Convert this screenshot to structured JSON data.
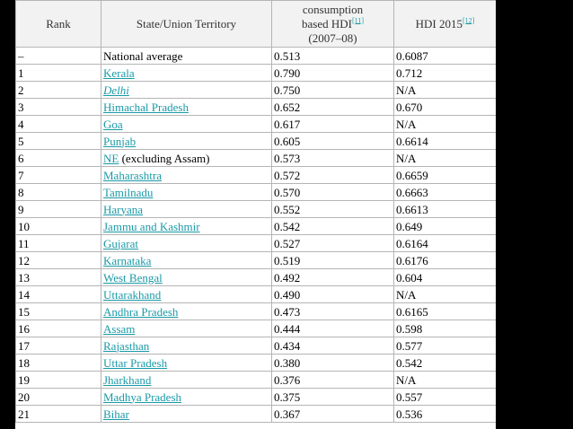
{
  "headers": {
    "rank": "Rank",
    "state": "State/Union Territory",
    "consumption_line1": "consumption",
    "consumption_line2": "based HDI",
    "consumption_ref": "[11]",
    "consumption_line3": "(2007–08)",
    "hdi2015": "HDI 2015",
    "hdi2015_ref": "[12]"
  },
  "rows": [
    {
      "rank": "–",
      "state": "National average",
      "suffix": "",
      "link": false,
      "italic": false,
      "cons": "0.513",
      "hdi": "0.6087"
    },
    {
      "rank": "1",
      "state": "Kerala",
      "suffix": "",
      "link": true,
      "italic": false,
      "cons": "0.790",
      "hdi": "0.712"
    },
    {
      "rank": "2",
      "state": "Delhi",
      "suffix": "",
      "link": true,
      "italic": true,
      "cons": "0.750",
      "hdi": "N/A"
    },
    {
      "rank": "3",
      "state": "Himachal Pradesh",
      "suffix": "",
      "link": true,
      "italic": false,
      "cons": "0.652",
      "hdi": "0.670"
    },
    {
      "rank": "4",
      "state": "Goa",
      "suffix": "",
      "link": true,
      "italic": false,
      "cons": "0.617",
      "hdi": "N/A"
    },
    {
      "rank": "5",
      "state": "Punjab",
      "suffix": "",
      "link": true,
      "italic": false,
      "cons": "0.605",
      "hdi": "0.6614"
    },
    {
      "rank": "6",
      "state": "NE",
      "suffix": " (excluding Assam)",
      "link": true,
      "italic": false,
      "cons": "0.573",
      "hdi": "N/A"
    },
    {
      "rank": "7",
      "state": "Maharashtra",
      "suffix": "",
      "link": true,
      "italic": false,
      "cons": "0.572",
      "hdi": "0.6659"
    },
    {
      "rank": "8",
      "state": "Tamilnadu",
      "suffix": "",
      "link": true,
      "italic": false,
      "cons": "0.570",
      "hdi": "0.6663"
    },
    {
      "rank": "9",
      "state": "Haryana",
      "suffix": "",
      "link": true,
      "italic": false,
      "cons": "0.552",
      "hdi": "0.6613"
    },
    {
      "rank": "10",
      "state": "Jammu and Kashmir",
      "suffix": "",
      "link": true,
      "italic": false,
      "cons": "0.542",
      "hdi": "0.649"
    },
    {
      "rank": "11",
      "state": "Gujarat",
      "suffix": "",
      "link": true,
      "italic": false,
      "cons": "0.527",
      "hdi": "0.6164"
    },
    {
      "rank": "12",
      "state": "Karnataka",
      "suffix": "",
      "link": true,
      "italic": false,
      "cons": "0.519",
      "hdi": "0.6176"
    },
    {
      "rank": "13",
      "state": "West Bengal",
      "suffix": "",
      "link": true,
      "italic": false,
      "cons": "0.492",
      "hdi": "0.604"
    },
    {
      "rank": "14",
      "state": "Uttarakhand",
      "suffix": "",
      "link": true,
      "italic": false,
      "cons": "0.490",
      "hdi": "N/A"
    },
    {
      "rank": "15",
      "state": "Andhra Pradesh",
      "suffix": "",
      "link": true,
      "italic": false,
      "cons": "0.473",
      "hdi": "0.6165"
    },
    {
      "rank": "16",
      "state": "Assam",
      "suffix": "",
      "link": true,
      "italic": false,
      "cons": "0.444",
      "hdi": "0.598"
    },
    {
      "rank": "17",
      "state": "Rajasthan",
      "suffix": "",
      "link": true,
      "italic": false,
      "cons": "0.434",
      "hdi": "0.577"
    },
    {
      "rank": "18",
      "state": "Uttar Pradesh",
      "suffix": "",
      "link": true,
      "italic": false,
      "cons": "0.380",
      "hdi": "0.542"
    },
    {
      "rank": "19",
      "state": "Jharkhand",
      "suffix": "",
      "link": true,
      "italic": false,
      "cons": "0.376",
      "hdi": "N/A"
    },
    {
      "rank": "20",
      "state": "Madhya Pradesh",
      "suffix": "",
      "link": true,
      "italic": false,
      "cons": "0.375",
      "hdi": "0.557"
    },
    {
      "rank": "21",
      "state": "Bihar",
      "suffix": "",
      "link": true,
      "italic": false,
      "cons": "0.367",
      "hdi": "0.536"
    }
  ],
  "colors": {
    "link": "#1a9aa8",
    "header_bg": "#f2f2f2",
    "border": "#b5b5b5",
    "background": "#000000"
  }
}
